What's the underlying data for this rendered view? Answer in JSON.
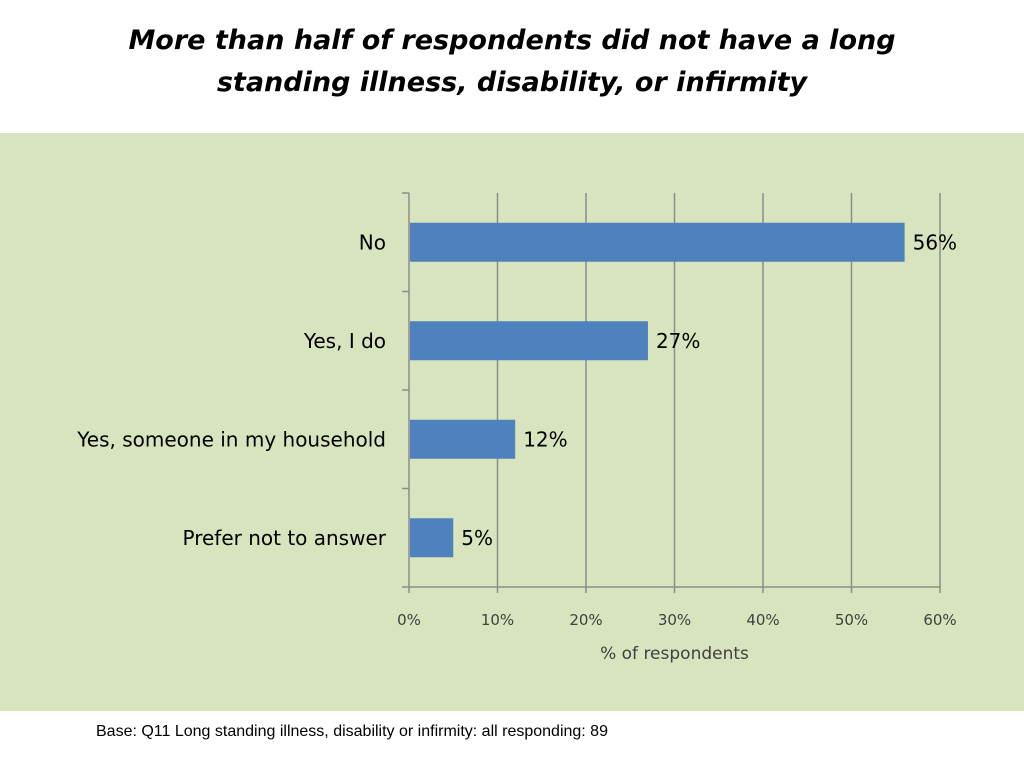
{
  "title_lines": [
    "More than half of respondents did not have a long",
    "standing illness, disability, or infirmity"
  ],
  "footnote": "Base: Q11 Long standing illness, disability or infirmity: all responding: 89",
  "colors": {
    "bar": "#4f81bd",
    "panel": "#d7e4bd",
    "grid": "#8c8c8c",
    "text": "#000000",
    "tick_text": "#404040"
  },
  "chart_data": {
    "type": "bar",
    "orientation": "horizontal",
    "categories": [
      "No",
      "Yes, I do",
      "Yes, someone in my household",
      "Prefer not to answer"
    ],
    "values": [
      56,
      27,
      12,
      5
    ],
    "data_labels": [
      "56%",
      "27%",
      "12%",
      "5%"
    ],
    "xlabel": "% of respondents",
    "ylabel": "",
    "xlim": [
      0,
      60
    ],
    "xticks": [
      0,
      10,
      20,
      30,
      40,
      50,
      60
    ],
    "xtick_labels": [
      "0%",
      "10%",
      "20%",
      "30%",
      "40%",
      "50%",
      "60%"
    ],
    "grid": true,
    "legend": "none"
  }
}
